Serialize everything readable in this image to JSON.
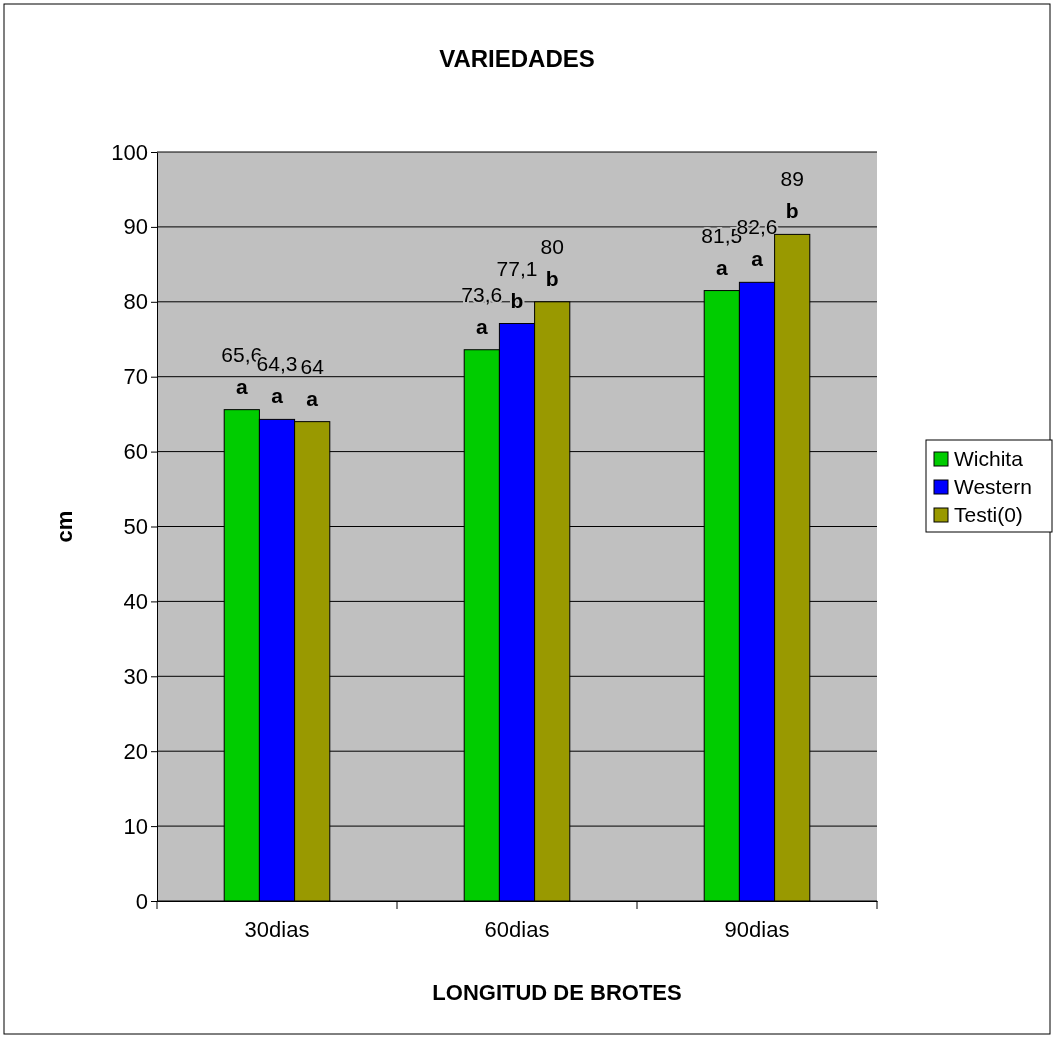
{
  "chart_data": {
    "type": "bar",
    "title": "VARIEDADES",
    "xlabel": "LONGITUD DE BROTES",
    "ylabel": "cm",
    "categories": [
      "30dias",
      "60dias",
      "90dias"
    ],
    "series": [
      {
        "name": "Wichita",
        "color": "#00cc00",
        "values": [
          65.6,
          73.6,
          81.5
        ],
        "value_labels": [
          "65,6",
          "73,6",
          "81,5"
        ]
      },
      {
        "name": "Western",
        "color": "#0000ff",
        "values": [
          64.3,
          77.1,
          82.6
        ],
        "value_labels": [
          "64,3",
          "77,1",
          "82,6"
        ]
      },
      {
        "name": "Testi(0)",
        "color": "#999900",
        "values": [
          64,
          80,
          89
        ],
        "value_labels": [
          "64",
          "80",
          "89"
        ]
      }
    ],
    "ylim": [
      0,
      100
    ],
    "yticks": [
      0,
      10,
      20,
      30,
      40,
      50,
      60,
      70,
      80,
      90,
      100
    ],
    "grid": "y",
    "legend": "right",
    "annotations": [
      "a",
      "a",
      "a",
      "a",
      "b",
      "b",
      "a",
      "a",
      "b"
    ]
  }
}
